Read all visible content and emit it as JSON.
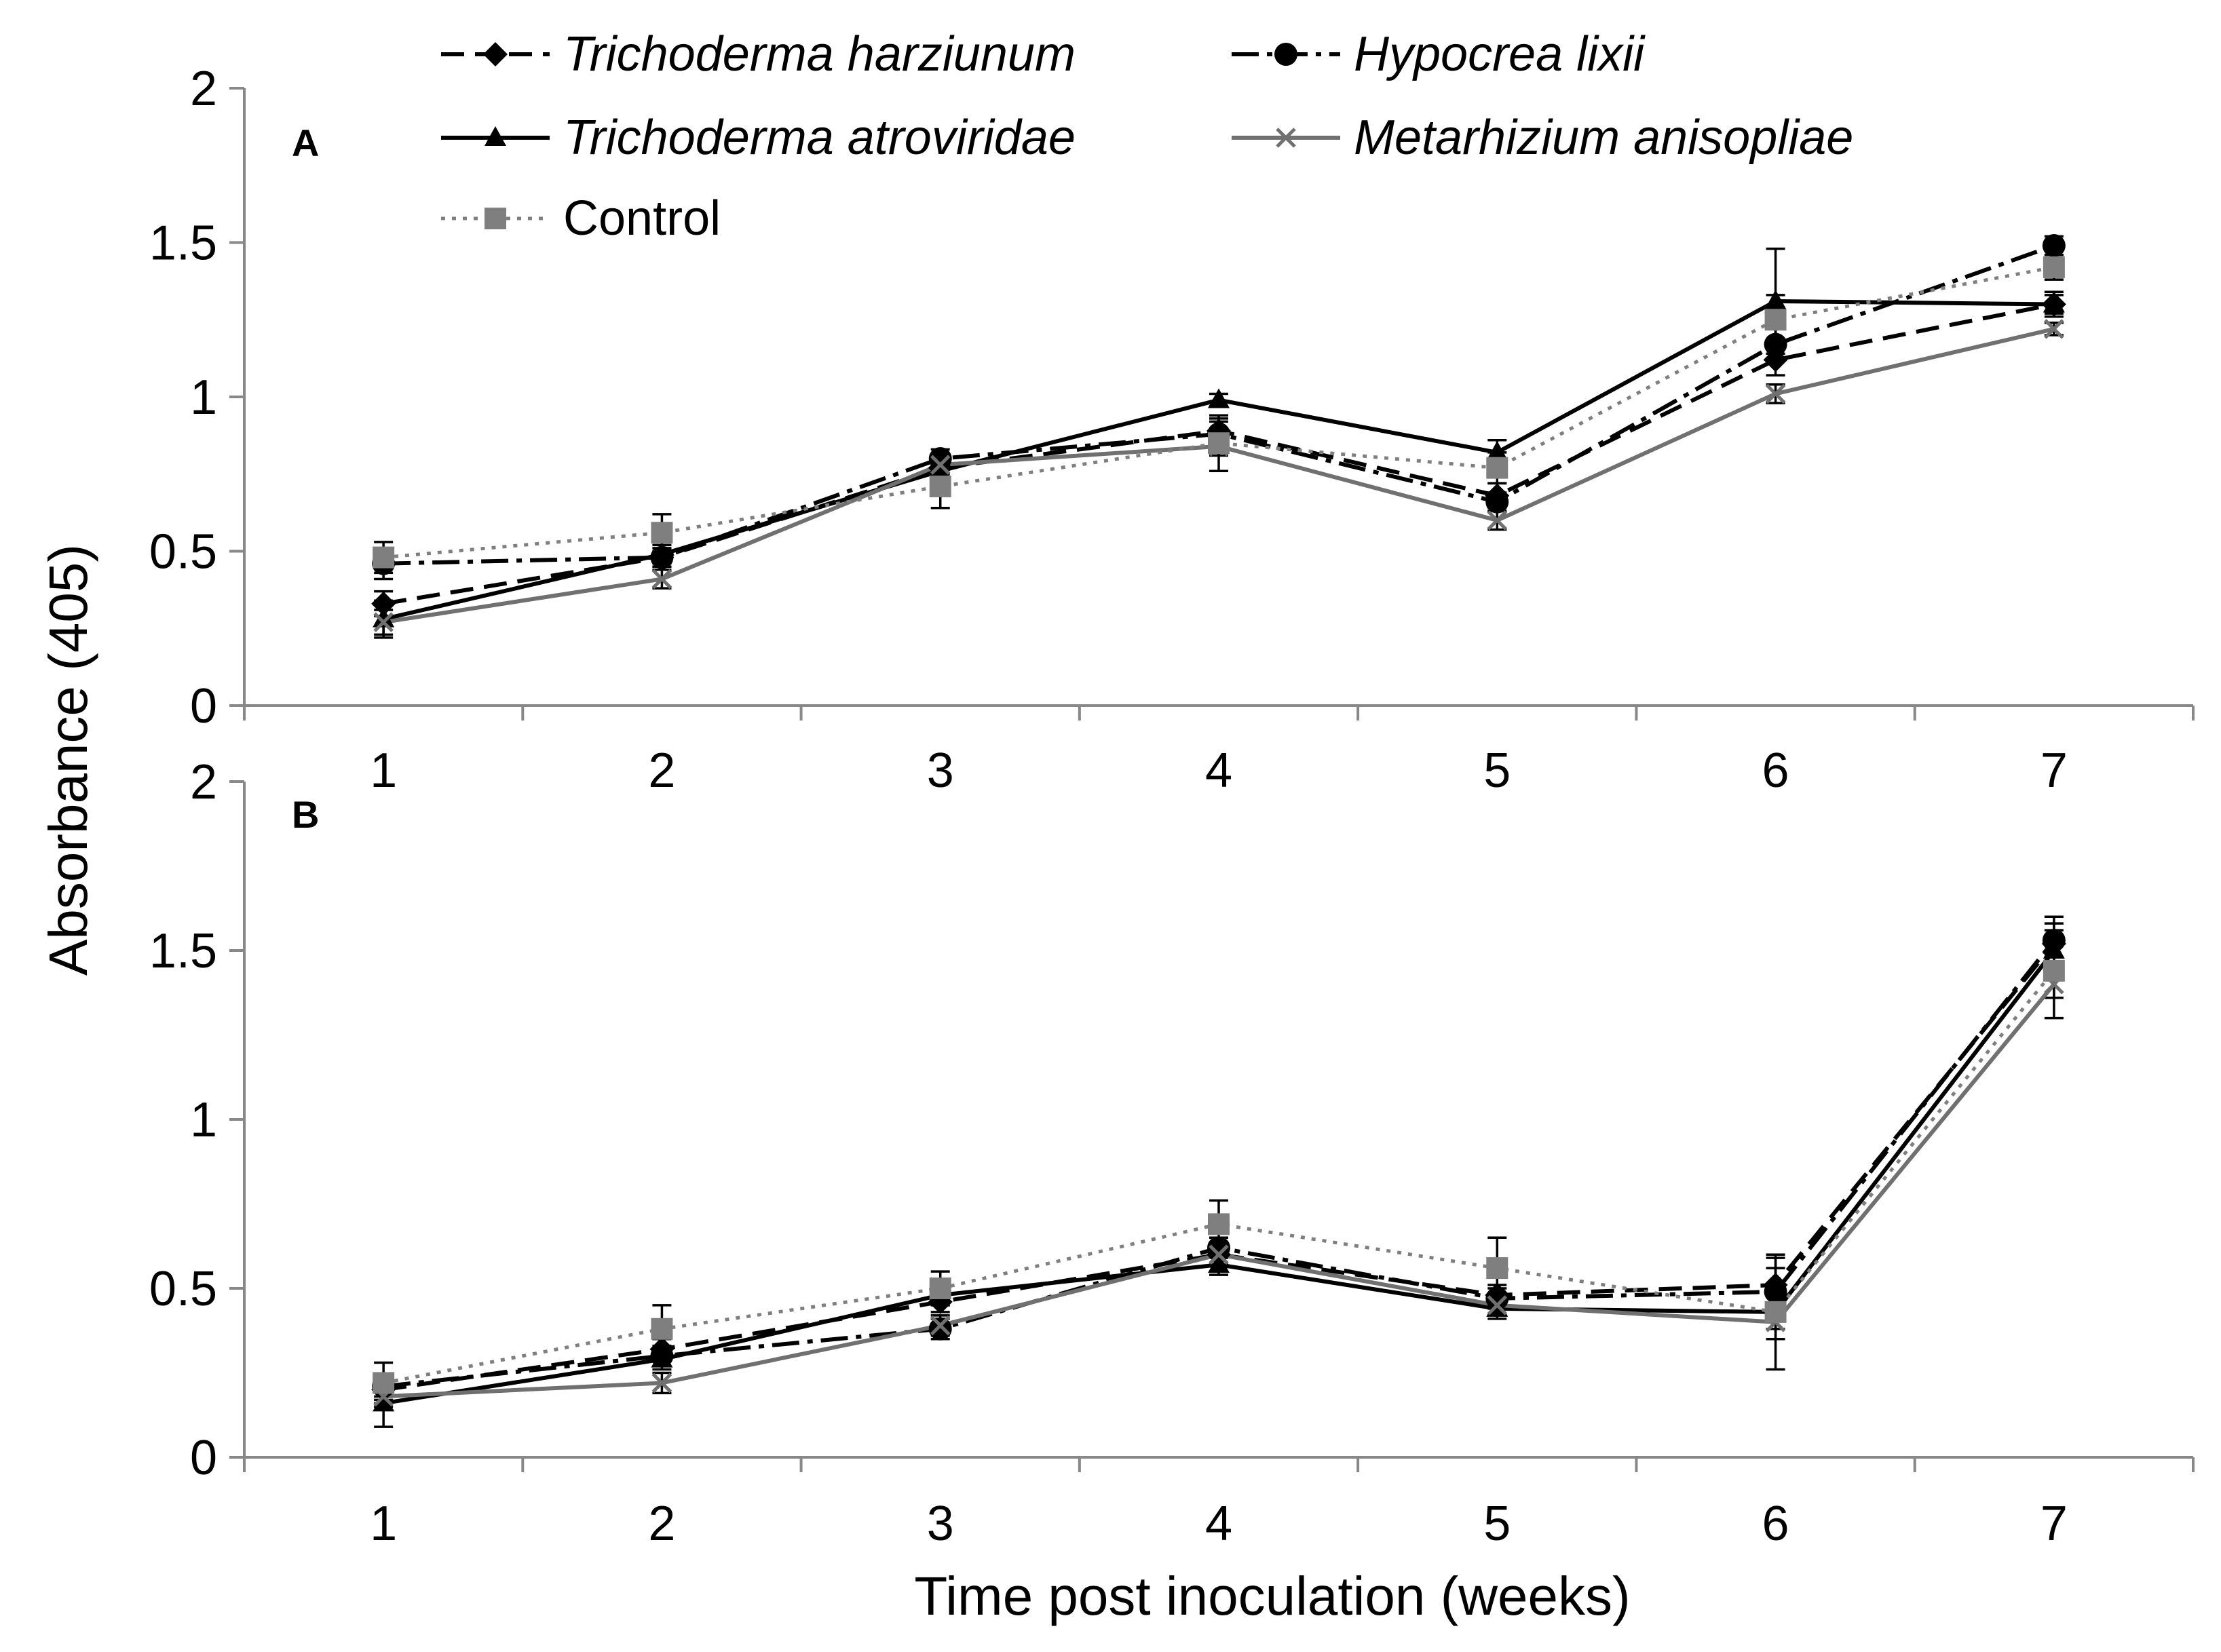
{
  "chart_data": {
    "type": "line",
    "ylabel": "Absorbance (405)",
    "xlabel": "Time post inoculation (weeks)",
    "x": [
      1,
      2,
      3,
      4,
      5,
      6,
      7
    ],
    "x_ticks": [
      "1",
      "2",
      "3",
      "4",
      "5",
      "6",
      "7"
    ],
    "y_ticks": [
      "0",
      "0.5",
      "1",
      "1.5",
      "2"
    ],
    "ylim": [
      0,
      2
    ],
    "legend": {
      "placement": "top",
      "entries": [
        {
          "key": "harz",
          "label": "Trichoderma harziunum",
          "italic": true
        },
        {
          "key": "hyp",
          "label": "Hypocrea lixii",
          "italic": true
        },
        {
          "key": "atro",
          "label": "Trichoderma atroviridae",
          "italic": true
        },
        {
          "key": "meta",
          "label": "Metarhizium anisopliae",
          "italic": true
        },
        {
          "key": "ctrl",
          "label": "Control",
          "italic": false
        }
      ]
    },
    "series_styles": {
      "harz": {
        "color": "#000000",
        "dash": "dashed",
        "marker": "diamond"
      },
      "hyp": {
        "color": "#000000",
        "dash": "dash-dot",
        "marker": "circle"
      },
      "atro": {
        "color": "#000000",
        "dash": "solid",
        "marker": "triangle"
      },
      "meta": {
        "color": "#707070",
        "dash": "solid",
        "marker": "x"
      },
      "ctrl": {
        "color": "#7f7f7f",
        "dash": "dotted",
        "marker": "square"
      }
    },
    "panels": [
      {
        "label": "A",
        "series": [
          {
            "key": "harz",
            "values": [
              0.33,
              0.48,
              0.77,
              0.89,
              0.68,
              1.12,
              1.3
            ],
            "errors": [
              0.04,
              0.03,
              0.03,
              0.04,
              0.04,
              0.05,
              0.03
            ]
          },
          {
            "key": "hyp",
            "values": [
              0.46,
              0.48,
              0.8,
              0.88,
              0.66,
              1.17,
              1.49
            ],
            "errors": [
              0.05,
              0.03,
              0.03,
              0.04,
              0.03,
              0.05,
              0.03
            ]
          },
          {
            "key": "atro",
            "values": [
              0.28,
              0.49,
              0.76,
              0.99,
              0.82,
              1.31,
              1.3
            ],
            "errors": [
              0.06,
              0.03,
              0.03,
              0.02,
              0.04,
              0.17,
              0.04
            ]
          },
          {
            "key": "meta",
            "values": [
              0.27,
              0.41,
              0.78,
              0.84,
              0.6,
              1.01,
              1.22
            ],
            "errors": [
              0.04,
              0.03,
              0.03,
              0.03,
              0.03,
              0.03,
              0.02
            ]
          },
          {
            "key": "ctrl",
            "values": [
              0.48,
              0.56,
              0.71,
              0.85,
              0.77,
              1.25,
              1.42
            ],
            "errors": [
              0.05,
              0.06,
              0.07,
              0.09,
              0.05,
              0.08,
              0.04
            ]
          }
        ]
      },
      {
        "label": "B",
        "series": [
          {
            "key": "harz",
            "values": [
              0.2,
              0.32,
              0.46,
              0.6,
              0.48,
              0.51,
              1.52
            ],
            "errors": [
              0.03,
              0.03,
              0.03,
              0.03,
              0.03,
              0.08,
              0.04
            ]
          },
          {
            "key": "hyp",
            "values": [
              0.21,
              0.3,
              0.38,
              0.62,
              0.47,
              0.49,
              1.53
            ],
            "errors": [
              0.03,
              0.03,
              0.03,
              0.03,
              0.03,
              0.07,
              0.07
            ]
          },
          {
            "key": "atro",
            "values": [
              0.16,
              0.29,
              0.48,
              0.57,
              0.44,
              0.43,
              1.5
            ],
            "errors": [
              0.07,
              0.03,
              0.03,
              0.03,
              0.03,
              0.05,
              0.04
            ]
          },
          {
            "key": "meta",
            "values": [
              0.18,
              0.22,
              0.39,
              0.6,
              0.45,
              0.4,
              1.4
            ],
            "errors": [
              0.03,
              0.03,
              0.03,
              0.03,
              0.03,
              0.05,
              0.04
            ]
          },
          {
            "key": "ctrl",
            "values": [
              0.22,
              0.38,
              0.5,
              0.69,
              0.56,
              0.43,
              1.44
            ],
            "errors": [
              0.06,
              0.07,
              0.05,
              0.07,
              0.09,
              0.17,
              0.14
            ]
          }
        ]
      }
    ]
  }
}
